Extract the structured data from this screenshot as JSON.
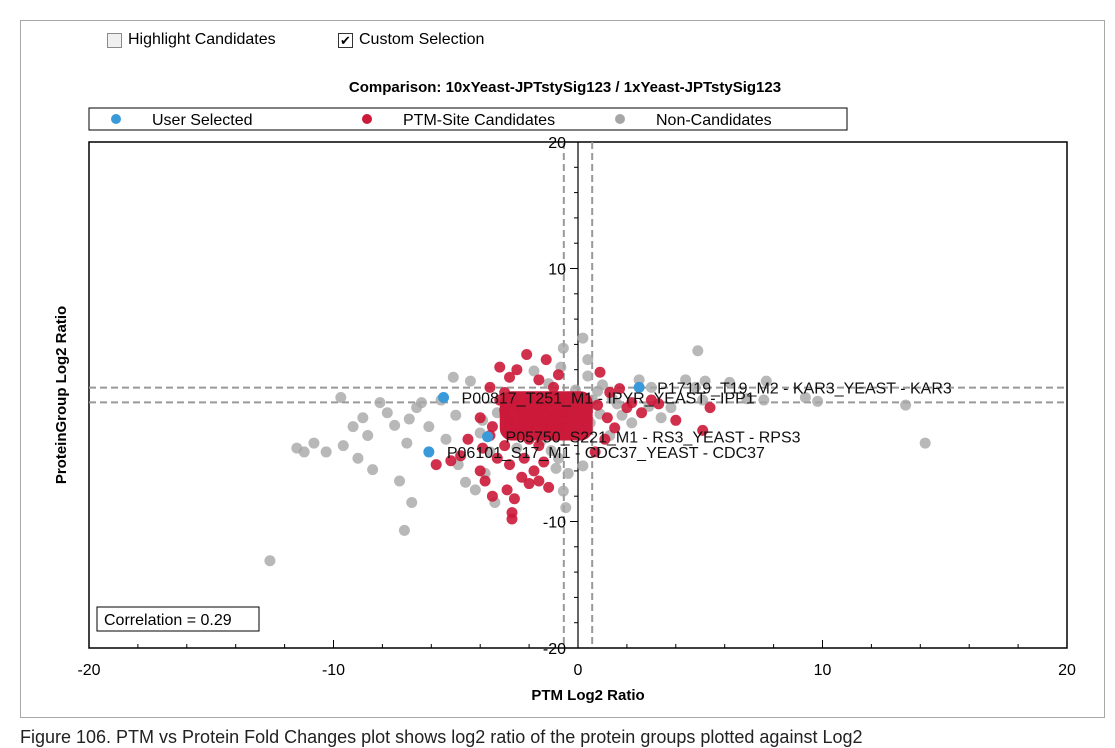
{
  "controls": {
    "highlight_candidates": {
      "label": "Highlight Candidates",
      "checked": false
    },
    "custom_selection": {
      "label": "Custom Selection",
      "checked": true
    }
  },
  "chart_data": {
    "type": "scatter",
    "title": "Comparison: 10xYeast-JPTstySig123 / 1xYeast-JPTstySig123",
    "xlabel": "PTM Log2 Ratio",
    "ylabel": "ProteinGroup Log2 Ratio",
    "xlim": [
      -20,
      20
    ],
    "ylim": [
      -20,
      20
    ],
    "x_ticks": [
      -20,
      -10,
      0,
      10,
      20
    ],
    "y_ticks": [
      20,
      10,
      -10,
      -20
    ],
    "grid": false,
    "legend_position": "top",
    "colors": {
      "user_selected": "#3a9ad9",
      "candidates": "#cc1a3a",
      "non_candidates": "#a6a6a6",
      "threshold": "#999999"
    },
    "thresholds": {
      "x": [
        -0.58,
        0.58
      ],
      "y": [
        -0.58,
        0.58
      ]
    },
    "annotation": "Correlation = 0.29",
    "series": [
      {
        "name": "User Selected",
        "points": [
          {
            "x": 2.5,
            "y": 0.6,
            "label": "P17119_T19_M2 - KAR3_YEAST - KAR3"
          },
          {
            "x": -5.5,
            "y": -0.2,
            "label": "P00817_T251_M1 - IPYR_YEAST - IPP1"
          },
          {
            "x": -3.7,
            "y": -3.3,
            "label": "P05750_S221_M1 - RS3_YEAST - RPS3"
          },
          {
            "x": -6.1,
            "y": -4.5,
            "label": "P06101_S17_M1 - CDC37_YEAST - CDC37"
          }
        ]
      },
      {
        "name": "PTM-Site Candidates",
        "points": [
          [
            -2.0,
            -1.5
          ],
          [
            -1.5,
            -2.2
          ],
          [
            -2.5,
            -0.8
          ],
          [
            -1.2,
            -3.0
          ],
          [
            -3.0,
            -1.2
          ],
          [
            -0.8,
            -1.0
          ],
          [
            -1.8,
            -0.5
          ],
          [
            -2.2,
            -2.8
          ],
          [
            -1.0,
            -1.8
          ],
          [
            -2.8,
            -2.0
          ],
          [
            -0.7,
            -2.5
          ],
          [
            -1.4,
            -0.9
          ],
          [
            -3.2,
            -0.4
          ],
          [
            -2.0,
            -3.5
          ],
          [
            -0.9,
            -3.2
          ],
          [
            -1.6,
            -4.0
          ],
          [
            -2.4,
            -1.0
          ],
          [
            -1.1,
            -0.6
          ],
          [
            -0.6,
            -1.4
          ],
          [
            -2.6,
            -3.0
          ],
          [
            -3.5,
            -2.5
          ],
          [
            -1.9,
            -2.0
          ],
          [
            -1.3,
            -2.6
          ],
          [
            -2.1,
            -0.7
          ],
          [
            -2.8,
            -5.5
          ],
          [
            -2.3,
            -6.5
          ],
          [
            -2.9,
            -7.5
          ],
          [
            -2.6,
            -8.2
          ],
          [
            -1.8,
            -6.0
          ],
          [
            -3.3,
            -5.0
          ],
          [
            -1.4,
            -5.3
          ],
          [
            -3.9,
            -4.2
          ],
          [
            -2.0,
            -7.0
          ],
          [
            -1.6,
            -6.8
          ],
          [
            -4.0,
            -6.0
          ],
          [
            -2.7,
            -9.3
          ],
          [
            -2.7,
            -9.8
          ],
          [
            -3.5,
            -8.0
          ],
          [
            -1.2,
            -7.3
          ],
          [
            -2.2,
            -5.0
          ],
          [
            -4.5,
            -3.5
          ],
          [
            -4.8,
            -4.8
          ],
          [
            -5.8,
            -5.5
          ],
          [
            -3.8,
            -6.8
          ],
          [
            -5.2,
            -5.2
          ],
          [
            -4.0,
            -1.8
          ],
          [
            -3.6,
            0.6
          ],
          [
            -2.5,
            2.0
          ],
          [
            -1.6,
            1.2
          ],
          [
            -2.8,
            1.4
          ],
          [
            -3.2,
            2.2
          ],
          [
            -1.3,
            2.8
          ],
          [
            -2.1,
            3.2
          ],
          [
            -1.0,
            0.6
          ],
          [
            -0.8,
            1.6
          ],
          [
            -3.0,
            0.2
          ],
          [
            1.2,
            -1.8
          ],
          [
            0.8,
            -0.8
          ],
          [
            1.5,
            -2.6
          ],
          [
            2.0,
            -1.0
          ],
          [
            3.0,
            -0.4
          ],
          [
            3.3,
            -0.7
          ],
          [
            4.0,
            -2.0
          ],
          [
            5.4,
            -1.0
          ],
          [
            5.1,
            -2.8
          ],
          [
            1.7,
            0.5
          ],
          [
            0.9,
            1.8
          ],
          [
            1.1,
            -3.5
          ],
          [
            0.7,
            -4.5
          ],
          [
            2.2,
            -0.6
          ],
          [
            1.3,
            0.2
          ],
          [
            2.6,
            -1.4
          ],
          [
            -1.7,
            -1.3
          ],
          [
            -2.3,
            -1.9
          ],
          [
            -1.0,
            -2.2
          ],
          [
            -0.7,
            -0.5
          ],
          [
            -3.6,
            -3.2
          ],
          [
            -1.5,
            -1.0
          ],
          [
            -2.0,
            -2.4
          ],
          [
            -3.0,
            -4.0
          ]
        ]
      },
      {
        "name": "Non-Candidates",
        "points": [
          [
            -12.6,
            -13.1
          ],
          [
            -11.5,
            -4.2
          ],
          [
            -11.2,
            -4.5
          ],
          [
            -10.3,
            -4.5
          ],
          [
            -10.8,
            -3.8
          ],
          [
            -9.7,
            -0.2
          ],
          [
            -9.6,
            -4.0
          ],
          [
            -9.2,
            -2.5
          ],
          [
            -9.0,
            -5.0
          ],
          [
            -8.6,
            -3.2
          ],
          [
            -8.4,
            -5.9
          ],
          [
            -7.3,
            -6.8
          ],
          [
            -7.1,
            -10.7
          ],
          [
            -6.8,
            -8.5
          ],
          [
            -7.0,
            -3.8
          ],
          [
            -6.6,
            -1.0
          ],
          [
            -6.1,
            -2.5
          ],
          [
            -5.6,
            -0.4
          ],
          [
            -5.1,
            1.4
          ],
          [
            -4.4,
            1.1
          ],
          [
            -4.9,
            -5.5
          ],
          [
            -4.6,
            -6.9
          ],
          [
            -4.2,
            -7.5
          ],
          [
            -3.8,
            -6.2
          ],
          [
            -3.4,
            -8.5
          ],
          [
            -3.6,
            -4.5
          ],
          [
            -3.0,
            -1.5
          ],
          [
            -2.5,
            -1.0
          ],
          [
            -2.0,
            -0.6
          ],
          [
            -1.5,
            -1.2
          ],
          [
            -1.0,
            -0.3
          ],
          [
            -0.5,
            -1.1
          ],
          [
            -0.3,
            -2.0
          ],
          [
            -0.2,
            -3.0
          ],
          [
            0.0,
            -1.5
          ],
          [
            0.3,
            -0.8
          ],
          [
            0.5,
            -2.2
          ],
          [
            0.6,
            -0.4
          ],
          [
            0.9,
            -1.5
          ],
          [
            1.0,
            0.8
          ],
          [
            1.4,
            -0.3
          ],
          [
            1.8,
            -1.6
          ],
          [
            2.2,
            -2.2
          ],
          [
            2.5,
            1.2
          ],
          [
            3.0,
            0.6
          ],
          [
            3.4,
            -1.8
          ],
          [
            3.8,
            -1.0
          ],
          [
            4.4,
            1.2
          ],
          [
            4.8,
            0.6
          ],
          [
            5.1,
            -0.4
          ],
          [
            4.9,
            3.5
          ],
          [
            5.2,
            1.1
          ],
          [
            6.2,
            1.0
          ],
          [
            7.7,
            1.1
          ],
          [
            6.9,
            -0.3
          ],
          [
            7.6,
            -0.4
          ],
          [
            9.3,
            -0.2
          ],
          [
            9.8,
            -0.5
          ],
          [
            13.4,
            -0.8
          ],
          [
            14.2,
            -3.8
          ],
          [
            0.2,
            4.5
          ],
          [
            -0.6,
            3.7
          ],
          [
            -0.6,
            -7.6
          ],
          [
            -0.5,
            -8.9
          ],
          [
            -0.4,
            -6.2
          ],
          [
            0.2,
            -5.6
          ],
          [
            -0.8,
            -5.0
          ],
          [
            -1.9,
            -0.8
          ],
          [
            -2.9,
            -0.2
          ],
          [
            -3.9,
            -2.0
          ],
          [
            -1.5,
            -3.6
          ],
          [
            -2.5,
            -4.2
          ],
          [
            -1.2,
            0.9
          ],
          [
            -0.7,
            2.2
          ],
          [
            -1.8,
            1.9
          ],
          [
            -2.4,
            -2.6
          ],
          [
            -3.3,
            -1.4
          ],
          [
            -4.0,
            -3.0
          ],
          [
            -5.0,
            -1.6
          ],
          [
            -5.4,
            -3.5
          ],
          [
            -6.4,
            -0.6
          ],
          [
            -7.8,
            -1.4
          ],
          [
            -8.1,
            -0.6
          ],
          [
            -8.8,
            -1.8
          ],
          [
            -7.5,
            -2.4
          ],
          [
            -6.9,
            -1.9
          ],
          [
            0.4,
            1.5
          ],
          [
            0.8,
            0.3
          ],
          [
            1.6,
            -0.7
          ],
          [
            2.9,
            -0.9
          ],
          [
            0.1,
            -1.0
          ],
          [
            -0.1,
            0.4
          ],
          [
            0.4,
            2.8
          ],
          [
            -1.1,
            -4.4
          ],
          [
            -0.9,
            -5.8
          ],
          [
            1.3,
            -3.2
          ]
        ]
      }
    ]
  },
  "caption": "Figure 106. PTM vs Protein Fold Changes plot shows log2 ratio of the protein groups plotted against Log2"
}
